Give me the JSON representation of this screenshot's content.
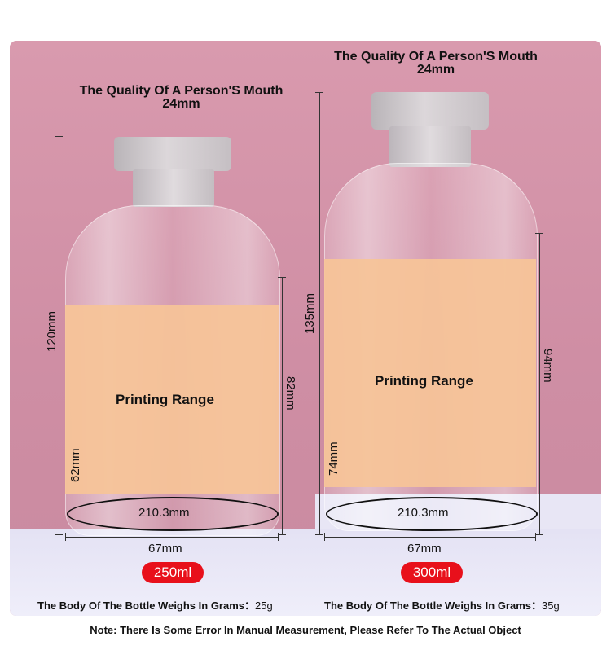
{
  "bottles": [
    {
      "title_line1": "The Quality Of A Person'S Mouth",
      "title_line2": "24mm",
      "height_total": "120mm",
      "label_height": "82mm",
      "label_inner": "62mm",
      "printing_range": "Printing Range",
      "circumference": "210.3mm",
      "width": "67mm",
      "volume": "250ml",
      "weight_label": "The Body Of The Bottle Weighs In Grams：",
      "weight_value": "25g"
    },
    {
      "title_line1": "The Quality Of A Person'S Mouth",
      "title_line2": "24mm",
      "height_total": "135mm",
      "label_height": "94mm",
      "label_inner": "74mm",
      "printing_range": "Printing Range",
      "circumference": "210.3mm",
      "width": "67mm",
      "volume": "300ml",
      "weight_label": "The Body Of The Bottle Weighs In Grams：",
      "weight_value": "35g"
    }
  ],
  "note": "Note: There Is Some Error In Manual Measurement, Please Refer To The Actual Object",
  "colors": {
    "accent": "#e8101b",
    "label_fill": "#f6c498",
    "background": "#d99aae"
  }
}
